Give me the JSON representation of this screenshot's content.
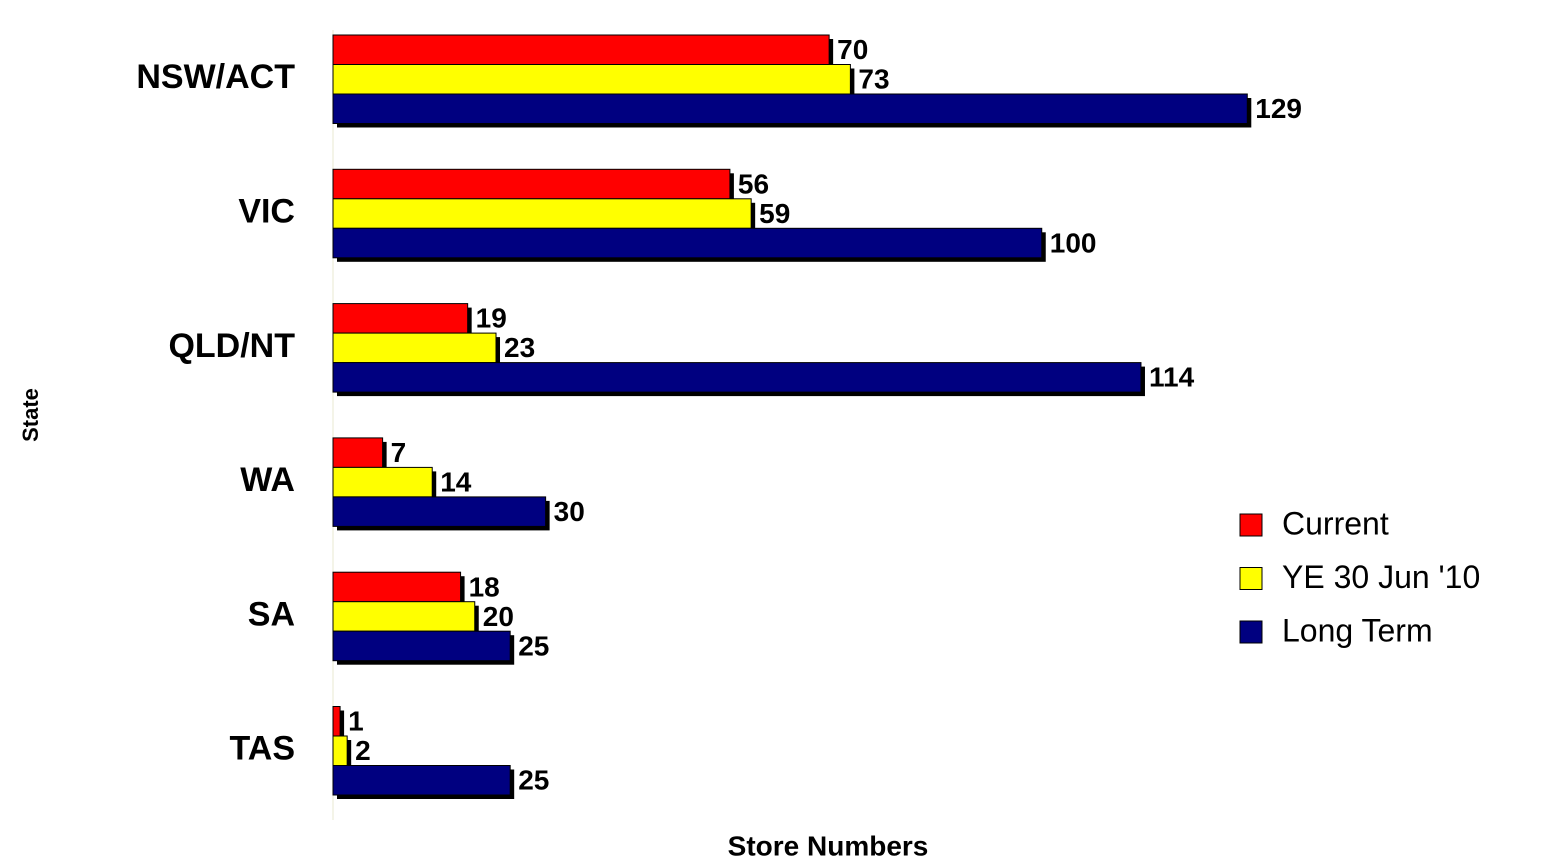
{
  "chart_data": {
    "type": "bar",
    "orientation": "horizontal",
    "x_label": "Store Numbers",
    "y_label": "State",
    "categories": [
      "NSW/ACT",
      "VIC",
      "QLD/NT",
      "WA",
      "SA",
      "TAS"
    ],
    "series": [
      {
        "name": "Current",
        "color": "#ff0000",
        "values": [
          70,
          56,
          19,
          7,
          18,
          1
        ]
      },
      {
        "name": "YE 30 Jun '10",
        "color": "#ffff00",
        "values": [
          73,
          59,
          23,
          14,
          20,
          2
        ]
      },
      {
        "name": "Long Term",
        "color": "#000080",
        "values": [
          129,
          100,
          114,
          30,
          25,
          25
        ]
      }
    ],
    "xlim": [
      0,
      160
    ],
    "legend": "right",
    "grid": false
  }
}
